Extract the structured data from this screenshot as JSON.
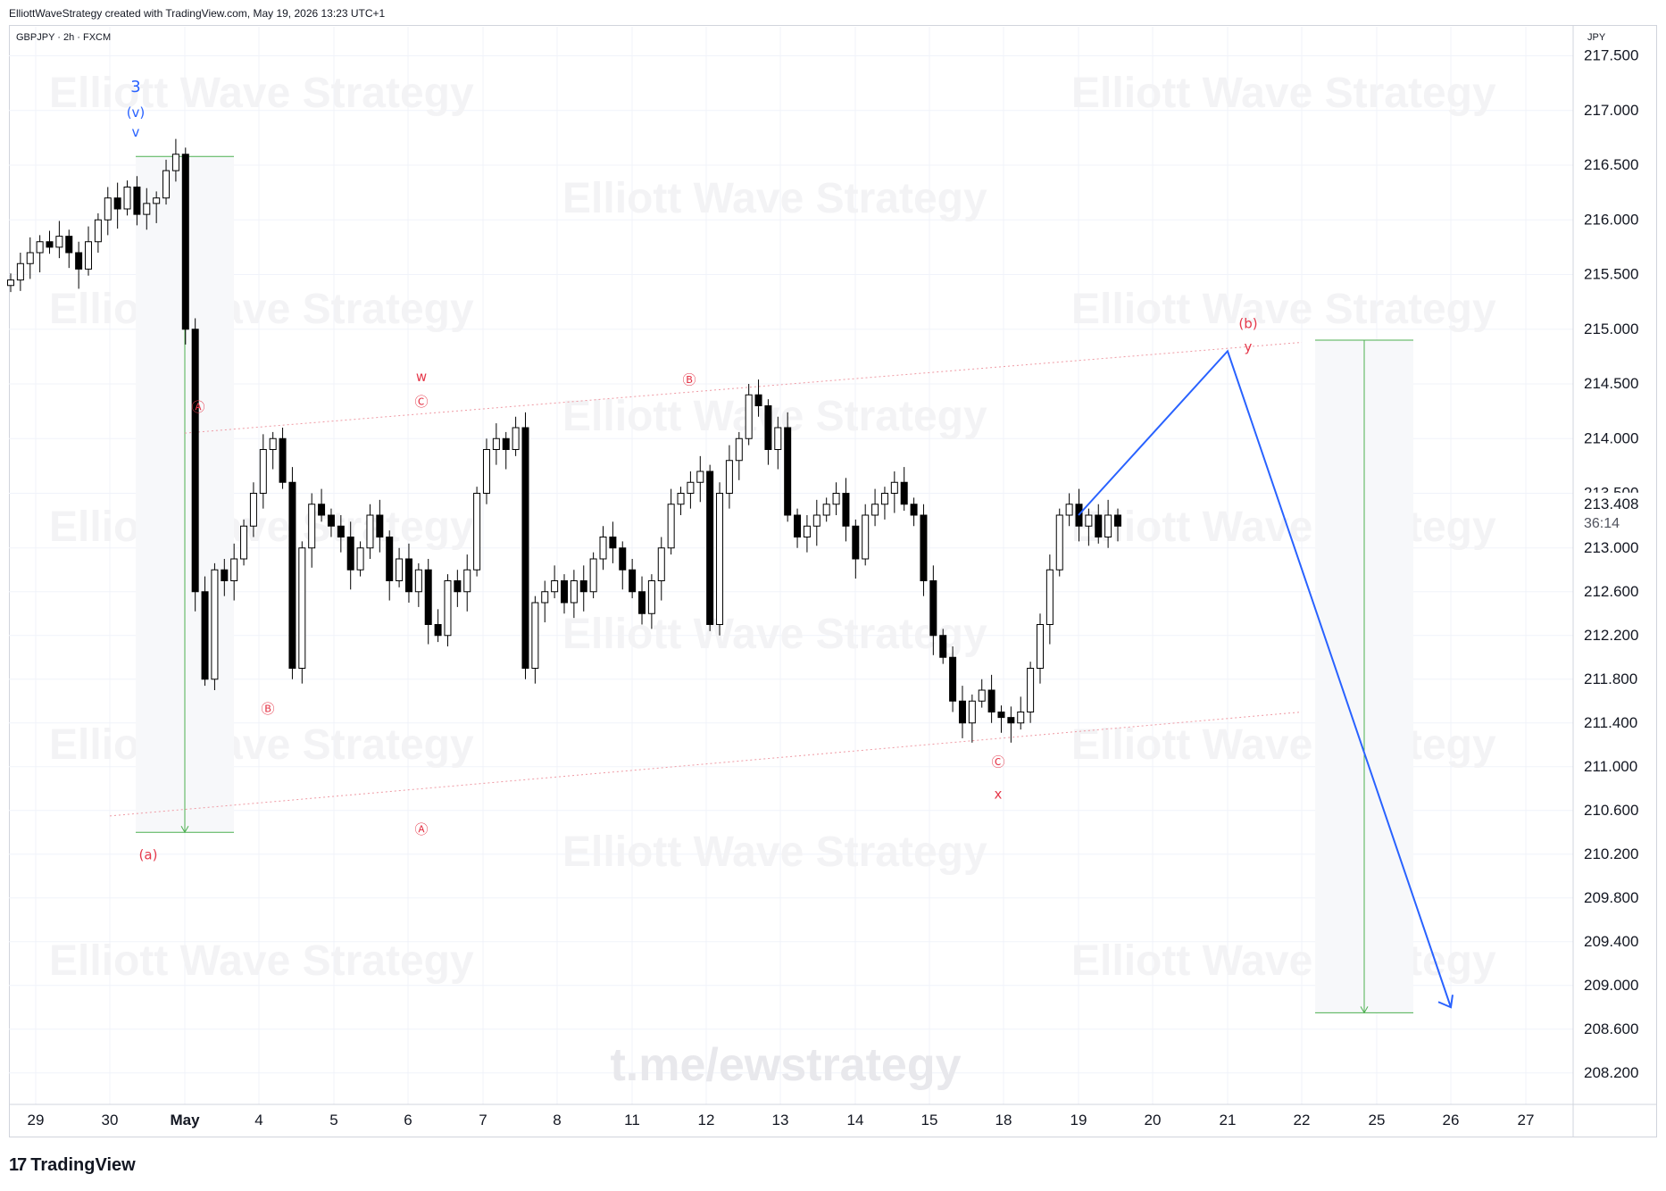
{
  "header": {
    "created_text": "ElliottWaveStrategy created with TradingView.com, May 19, 2026 13:23 UTC+1"
  },
  "symbol": {
    "label": "GBPJPY · 2h · FXCM"
  },
  "currency": "JPY",
  "watermarks": {
    "brand": "Elliott Wave Strategy",
    "link": "t.me/ewstrategy"
  },
  "footer": {
    "logo_text": "TradingView"
  },
  "price_tag": {
    "price": "213.408",
    "countdown": "36:14"
  },
  "colors": {
    "wave_red": "#e5394b",
    "wave_blue": "#2962ff",
    "range_green": "#4caf50",
    "grid": "#f0f3fa",
    "candle": "#000000"
  },
  "chart_data": {
    "type": "candlestick",
    "title": "GBPJPY · 2h · FXCM",
    "ylabel": "JPY",
    "ylim": [
      208.0,
      218.0
    ],
    "y_ticks": [
      "217.500",
      "217.000",
      "216.500",
      "216.000",
      "215.500",
      "215.000",
      "214.500",
      "214.000",
      "213.500",
      "213.000",
      "212.600",
      "212.200",
      "211.800",
      "211.400",
      "211.000",
      "210.600",
      "210.200",
      "209.800",
      "209.400",
      "209.000",
      "208.600",
      "208.200"
    ],
    "x_ticks": [
      "29",
      "30",
      "May",
      "4",
      "5",
      "6",
      "7",
      "8",
      "11",
      "12",
      "13",
      "14",
      "15",
      "18",
      "19",
      "20",
      "21",
      "22",
      "25",
      "26",
      "27"
    ],
    "close_series": [
      215.45,
      215.6,
      215.7,
      215.8,
      215.75,
      215.85,
      215.7,
      215.55,
      215.8,
      216.0,
      216.2,
      216.1,
      216.3,
      216.05,
      216.15,
      216.2,
      216.45,
      216.6,
      215.0,
      212.6,
      211.8,
      212.8,
      212.7,
      212.9,
      213.2,
      213.5,
      213.9,
      214.0,
      213.6,
      211.9,
      213.0,
      213.4,
      213.3,
      213.2,
      213.1,
      212.8,
      213.0,
      213.3,
      213.1,
      212.7,
      212.9,
      212.6,
      212.8,
      212.3,
      212.2,
      212.7,
      212.6,
      212.8,
      213.5,
      213.9,
      214.0,
      213.9,
      214.1,
      211.9,
      212.5,
      212.6,
      212.7,
      212.5,
      212.7,
      212.6,
      212.9,
      213.1,
      213.0,
      212.8,
      212.6,
      212.4,
      212.7,
      213.0,
      213.4,
      213.5,
      213.6,
      213.7,
      212.3,
      213.5,
      213.8,
      214.0,
      214.4,
      214.3,
      213.9,
      214.1,
      213.3,
      213.1,
      213.2,
      213.3,
      213.4,
      213.5,
      213.2,
      212.9,
      213.3,
      213.4,
      213.5,
      213.6,
      213.4,
      213.3,
      212.7,
      212.2,
      212.0,
      211.6,
      211.4,
      211.6,
      211.7,
      211.5,
      211.45,
      211.4,
      211.5,
      211.9,
      212.3,
      212.8,
      213.3,
      213.4,
      213.2,
      213.3,
      213.1,
      213.3,
      213.2
    ],
    "projection_path": [
      {
        "date": "19",
        "price": 213.3
      },
      {
        "date": "21",
        "price": 214.8
      },
      {
        "date": "26",
        "price": 208.8
      }
    ],
    "channel_upper": [
      {
        "date": "May",
        "price": 214.05
      },
      {
        "date": "22",
        "price": 214.88
      }
    ],
    "channel_lower": [
      {
        "date": "30",
        "price": 210.55
      },
      {
        "date": "22",
        "price": 211.5
      }
    ],
    "ranges": [
      {
        "top": 216.58,
        "bottom": 210.4
      },
      {
        "top": 214.9,
        "bottom": 208.75
      }
    ],
    "wave_labels": [
      {
        "text": "3",
        "color": "blue",
        "price_ref": 216.6
      },
      {
        "text": "(v)",
        "color": "blue",
        "price_ref": 216.6
      },
      {
        "text": "v",
        "color": "blue",
        "price_ref": 216.6
      },
      {
        "text": "(a)",
        "color": "red",
        "price_ref": 210.4
      },
      {
        "text": "Ⓐ",
        "color": "red",
        "price_ref": 214.05
      },
      {
        "text": "Ⓑ",
        "color": "red",
        "price_ref": 211.7
      },
      {
        "text": "w",
        "color": "red",
        "price_ref": 214.2
      },
      {
        "text": "Ⓒ",
        "color": "red",
        "price_ref": 214.2
      },
      {
        "text": "Ⓐ",
        "color": "red",
        "price_ref": 210.6
      },
      {
        "text": "Ⓑ",
        "color": "red",
        "price_ref": 214.4
      },
      {
        "text": "Ⓒ",
        "color": "red",
        "price_ref": 211.2
      },
      {
        "text": "x",
        "color": "red",
        "price_ref": 211.2
      },
      {
        "text": "(b)",
        "color": "red",
        "price_ref": 214.8
      },
      {
        "text": "y",
        "color": "red",
        "price_ref": 214.8
      }
    ]
  }
}
